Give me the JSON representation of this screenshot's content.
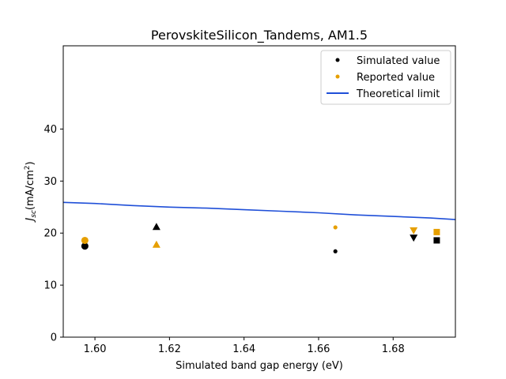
{
  "chart_data": {
    "type": "scatter",
    "title": "PerovskiteSilicon_Tandems, AM1.5",
    "xlabel": "Simulated band gap energy (eV)",
    "ylabel": "J_sc (mA/cm²)",
    "ylabel_main": "J",
    "ylabel_sub": "sc",
    "ylabel_unit": "(mA/cm",
    "ylabel_sup": "2",
    "ylabel_close": ")",
    "xlim": [
      1.5915,
      1.6967
    ],
    "ylim": [
      0,
      56
    ],
    "x_ticks": [
      1.6,
      1.62,
      1.64,
      1.66,
      1.68
    ],
    "x_tick_labels": [
      "1.60",
      "1.62",
      "1.64",
      "1.66",
      "1.68"
    ],
    "y_ticks": [
      0,
      10,
      20,
      30,
      40
    ],
    "y_tick_labels": [
      "0",
      "10",
      "20",
      "30",
      "40"
    ],
    "grid": false,
    "legend_position": "top-right",
    "legend": [
      {
        "label": "Simulated value",
        "kind": "marker",
        "color": "#000000"
      },
      {
        "label": "Reported value",
        "kind": "marker",
        "color": "#E69F00"
      },
      {
        "label": "Theoretical limit",
        "kind": "line",
        "color": "#1F4FD8"
      }
    ],
    "series": [
      {
        "name": "Simulated value",
        "color": "#000000",
        "points": [
          {
            "x": 1.5973,
            "y": 17.5,
            "marker": "circle"
          },
          {
            "x": 1.6165,
            "y": 21.2,
            "marker": "triangle-up"
          },
          {
            "x": 1.6645,
            "y": 16.5,
            "marker": "point"
          },
          {
            "x": 1.6855,
            "y": 19.1,
            "marker": "triangle-down"
          },
          {
            "x": 1.6917,
            "y": 18.6,
            "marker": "square"
          }
        ]
      },
      {
        "name": "Reported value",
        "color": "#E69F00",
        "points": [
          {
            "x": 1.5973,
            "y": 18.6,
            "marker": "circle"
          },
          {
            "x": 1.6165,
            "y": 17.8,
            "marker": "triangle-up"
          },
          {
            "x": 1.6645,
            "y": 21.1,
            "marker": "point"
          },
          {
            "x": 1.6855,
            "y": 20.5,
            "marker": "triangle-down"
          },
          {
            "x": 1.6917,
            "y": 20.2,
            "marker": "square"
          }
        ]
      },
      {
        "name": "Theoretical limit",
        "color": "#1F4FD8",
        "type": "line",
        "x": [
          1.5915,
          1.6,
          1.61,
          1.62,
          1.63,
          1.64,
          1.65,
          1.66,
          1.67,
          1.68,
          1.69,
          1.6967
        ],
        "y": [
          25.9,
          25.7,
          25.3,
          25.0,
          24.8,
          24.5,
          24.2,
          23.9,
          23.5,
          23.2,
          22.9,
          22.6
        ]
      }
    ]
  }
}
